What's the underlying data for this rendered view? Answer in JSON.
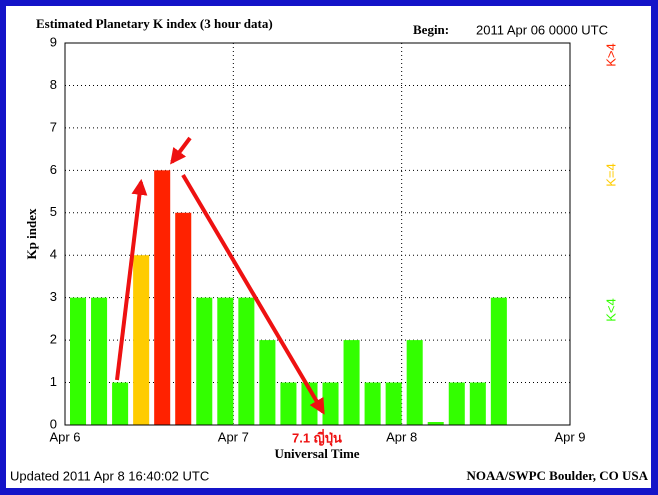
{
  "chart_data": {
    "type": "bar",
    "title": "Estimated Planetary K index (3 hour data)",
    "begin_label": "Begin:",
    "begin": "2011 Apr 06 0000 UTC",
    "y_label": "Kp index",
    "x_label": "Universal Time",
    "updated": "Updated 2011 Apr  8 16:40:02 UTC",
    "source": "NOAA/SWPC Boulder, CO USA",
    "annotation": "7.1 ญี่ปุ่น",
    "values": [
      3,
      3,
      1,
      4,
      6,
      5,
      3,
      3,
      3,
      2,
      1,
      1,
      1,
      2,
      1,
      1,
      2,
      0,
      1,
      1,
      3
    ],
    "colors": [
      "#33ff00",
      "#33ff00",
      "#33ff00",
      "#ffcc00",
      "#ff2200",
      "#ff2200",
      "#33ff00",
      "#33ff00",
      "#33ff00",
      "#33ff00",
      "#33ff00",
      "#33ff00",
      "#33ff00",
      "#33ff00",
      "#33ff00",
      "#33ff00",
      "#33ff00",
      "#33ff00",
      "#33ff00",
      "#33ff00",
      "#33ff00"
    ],
    "legend": [
      {
        "name": "K<4",
        "color": "#33ff00"
      },
      {
        "name": "K=4",
        "color": "#ffcc00"
      },
      {
        "name": "K>4",
        "color": "#ff2200"
      }
    ],
    "xlim": [
      0,
      24
    ],
    "xticks": [
      {
        "value": 0,
        "label": "Apr 6"
      },
      {
        "value": 8,
        "label": "Apr 7"
      },
      {
        "value": 16,
        "label": "Apr 8"
      },
      {
        "value": 24,
        "label": "Apr 9"
      }
    ],
    "ylim": [
      0,
      9
    ],
    "yticks": [
      0,
      1,
      2,
      3,
      4,
      5,
      6,
      7,
      8,
      9
    ],
    "grid": true
  }
}
